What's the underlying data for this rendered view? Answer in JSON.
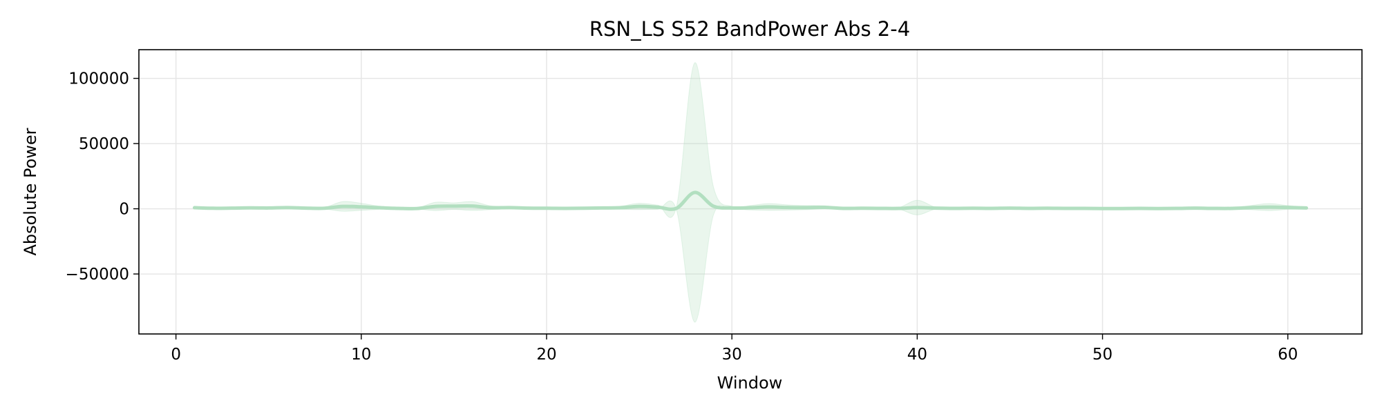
{
  "chart_data": {
    "type": "line",
    "title": "RSN_LS S52 BandPower Abs 2-4",
    "xlabel": "Window",
    "ylabel": "Absolute Power",
    "xlim": [
      -2,
      64
    ],
    "ylim": [
      -96000,
      122000
    ],
    "xticks": [
      0,
      10,
      20,
      30,
      40,
      50,
      60
    ],
    "xtick_labels": [
      "0",
      "10",
      "20",
      "30",
      "40",
      "50",
      "60"
    ],
    "yticks": [
      -50000,
      0,
      50000,
      100000
    ],
    "ytick_labels": [
      "−50000",
      "0",
      "50000",
      "100000"
    ],
    "grid": true,
    "colors": {
      "line": "#b2dfc0",
      "band": "#b2dfc0"
    },
    "series": [
      {
        "x": [
          1,
          2,
          3,
          4,
          5,
          6,
          7,
          8,
          9,
          10,
          11,
          12,
          13,
          14,
          15,
          16,
          17,
          18,
          19,
          20,
          21,
          22,
          23,
          24,
          25,
          26,
          27,
          28,
          29,
          30,
          31,
          32,
          33,
          34,
          35,
          36,
          37,
          38,
          39,
          40,
          41,
          42,
          43,
          44,
          45,
          46,
          47,
          48,
          49,
          50,
          51,
          52,
          53,
          54,
          55,
          56,
          57,
          58,
          59,
          60,
          61
        ],
        "mean": [
          800,
          400,
          500,
          700,
          600,
          900,
          500,
          400,
          1800,
          1500,
          800,
          300,
          200,
          1800,
          2000,
          2100,
          800,
          900,
          500,
          400,
          300,
          400,
          600,
          800,
          1800,
          1200,
          300,
          12500,
          2000,
          600,
          800,
          1400,
          1000,
          900,
          1100,
          300,
          400,
          300,
          300,
          900,
          500,
          300,
          400,
          300,
          500,
          300,
          400,
          300,
          300,
          200,
          200,
          300,
          200,
          300,
          500,
          300,
          300,
          900,
          1300,
          1000,
          600
        ],
        "upper": [
          1500,
          1000,
          1200,
          1300,
          1300,
          1900,
          1200,
          1000,
          5500,
          4200,
          2000,
          800,
          600,
          5000,
          4500,
          5500,
          2200,
          1800,
          1000,
          800,
          700,
          900,
          1200,
          2000,
          4200,
          2800,
          1000,
          112000,
          17000,
          1800,
          2500,
          4000,
          3000,
          2500,
          2300,
          900,
          1000,
          800,
          900,
          6500,
          1200,
          800,
          900,
          800,
          1000,
          800,
          900,
          700,
          700,
          600,
          600,
          700,
          600,
          800,
          1500,
          900,
          800,
          2500,
          4000,
          2500,
          1500
        ],
        "lower": [
          100,
          -200,
          -200,
          100,
          -100,
          -100,
          -200,
          -200,
          -1900,
          -1200,
          -400,
          -200,
          -200,
          -1400,
          -500,
          -1300,
          -600,
          0,
          0,
          0,
          -100,
          -100,
          0,
          -400,
          -600,
          -400,
          -400,
          -87000,
          -5000,
          -600,
          -900,
          -1200,
          -1000,
          -700,
          -100,
          -300,
          -200,
          -200,
          -300,
          -4700,
          -200,
          -200,
          -100,
          -200,
          0,
          -200,
          -100,
          -100,
          -100,
          -200,
          -200,
          -100,
          -200,
          -200,
          -500,
          -300,
          -200,
          -700,
          -1400,
          -500,
          -300
        ]
      }
    ]
  }
}
